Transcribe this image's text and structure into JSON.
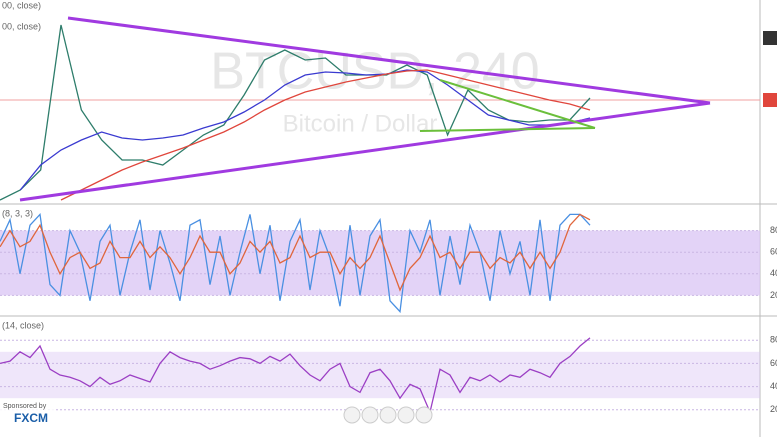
{
  "chart_data": [
    {
      "type": "line",
      "title": "BTCUSD, 240",
      "subtitle": "Bitcoin / Dollar",
      "ylim": [
        0,
        100
      ],
      "series": [
        {
          "color": "#2e7d6b",
          "values": [
            0,
            5,
            15,
            87.5,
            45,
            30,
            20,
            20,
            17.5,
            25,
            32.5,
            37.5,
            52.5,
            70,
            75,
            70,
            71,
            62.5,
            62.5,
            62.5,
            67.5,
            62.5,
            32.5,
            55,
            45,
            40,
            39,
            40,
            40,
            51
          ]
        },
        {
          "name": "00, close)",
          "color": "#3a3ad0",
          "values": [
            null,
            5,
            17.5,
            25,
            30,
            34,
            31,
            30,
            31,
            32.5,
            36,
            39,
            44,
            50,
            57.5,
            62.5,
            64,
            63.5,
            62.5,
            63,
            65,
            64,
            57.5,
            50,
            42.5,
            40,
            37.5,
            37.5,
            38.5,
            41
          ]
        },
        {
          "name": "00, close)",
          "color": "#e0463c",
          "values": [
            null,
            null,
            null,
            0,
            5,
            10,
            15,
            19,
            22.5,
            26,
            30,
            34,
            39,
            45,
            50,
            54,
            56.5,
            59,
            61,
            63,
            64.5,
            65,
            62.5,
            60,
            57.5,
            55,
            52.5,
            50,
            48,
            45
          ]
        }
      ]
    },
    {
      "type": "line",
      "title": "(8, 3, 3)",
      "ylim": [
        0,
        100
      ],
      "yticks": [
        20,
        40,
        60,
        80
      ],
      "band": [
        20,
        80
      ],
      "series": [
        {
          "color": "#4a90e2",
          "values": [
            70,
            90,
            40,
            85,
            95,
            30,
            20,
            80,
            60,
            15,
            70,
            85,
            20,
            60,
            90,
            25,
            80,
            50,
            15,
            85,
            90,
            30,
            75,
            20,
            60,
            95,
            40,
            85,
            15,
            70,
            90,
            25,
            80,
            55,
            10,
            85,
            20,
            75,
            90,
            15,
            5,
            80,
            60,
            90,
            20,
            75,
            30,
            85,
            60,
            15,
            80,
            40,
            70,
            20,
            90,
            15,
            85,
            95,
            95,
            85
          ]
        },
        {
          "color": "#e0663c",
          "values": [
            65,
            80,
            65,
            70,
            85,
            60,
            40,
            55,
            60,
            45,
            50,
            70,
            55,
            55,
            70,
            55,
            65,
            55,
            40,
            55,
            75,
            60,
            60,
            40,
            50,
            70,
            60,
            70,
            50,
            55,
            75,
            55,
            60,
            60,
            40,
            55,
            45,
            55,
            75,
            50,
            25,
            45,
            55,
            75,
            55,
            60,
            45,
            60,
            60,
            45,
            55,
            50,
            60,
            45,
            60,
            45,
            60,
            85,
            95,
            90
          ]
        }
      ]
    },
    {
      "type": "line",
      "title": "(14, close)",
      "ylim": [
        0,
        100
      ],
      "yticks": [
        20,
        40,
        60,
        80
      ],
      "band": [
        30,
        70
      ],
      "series": [
        {
          "color": "#9b3fc4",
          "values": [
            60,
            62,
            70,
            65,
            75,
            55,
            50,
            48,
            45,
            40,
            48,
            42,
            45,
            50,
            47,
            44,
            60,
            70,
            65,
            62,
            60,
            55,
            58,
            62,
            65,
            64,
            60,
            66,
            62,
            68,
            58,
            50,
            45,
            55,
            60,
            40,
            35,
            52,
            55,
            45,
            30,
            42,
            38,
            18,
            55,
            50,
            35,
            48,
            45,
            50,
            44,
            50,
            48,
            55,
            52,
            48,
            60,
            66,
            75,
            82
          ]
        }
      ]
    }
  ],
  "sponsor": {
    "text": "Sponsored by",
    "brand": "FXCM"
  }
}
